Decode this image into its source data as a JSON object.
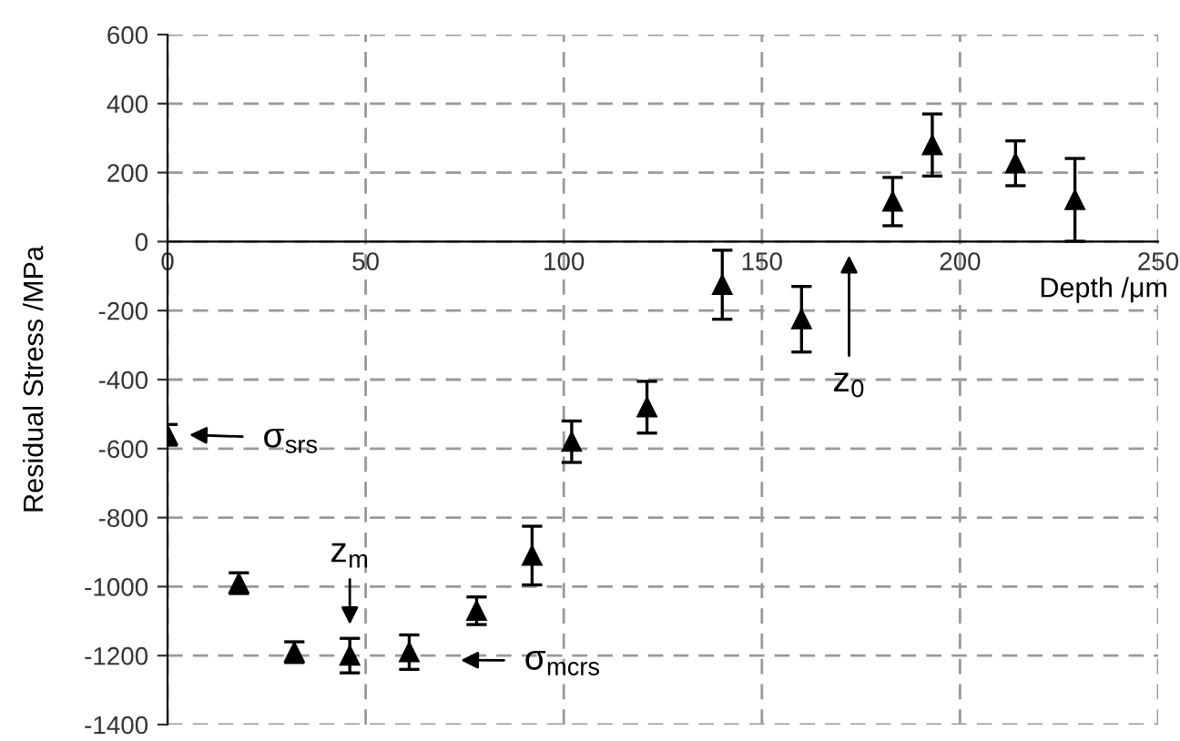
{
  "chart_data": {
    "type": "scatter",
    "xlabel": "Depth /μm",
    "ylabel": "Residual Stress /MPa",
    "x": [
      0,
      18,
      32,
      46,
      61,
      78,
      92,
      102,
      121,
      140,
      160,
      183,
      193,
      214,
      229
    ],
    "series": [
      {
        "color": "#000000",
        "values": [
          -560,
          -990,
          -1190,
          -1200,
          -1190,
          -1070,
          -910,
          -580,
          -480,
          -125,
          -225,
          116,
          280,
          227,
          121
        ],
        "errors": [
          30,
          30,
          30,
          50,
          50,
          40,
          85,
          60,
          75,
          100,
          95,
          70,
          90,
          65,
          120
        ]
      }
    ],
    "marker": "triangle",
    "xlim": [
      0,
      250
    ],
    "ylim": [
      -1400,
      600
    ],
    "xticks": [
      0,
      50,
      100,
      150,
      200,
      250
    ],
    "yticks": [
      -1400,
      -1200,
      -1000,
      -800,
      -600,
      -400,
      -200,
      0,
      200,
      400,
      600
    ],
    "grid": true,
    "annotations": [
      "σ$_{srs}$",
      "z$_{m}$",
      "σ$_{mcrs}$",
      "z$_{0}$"
    ]
  }
}
